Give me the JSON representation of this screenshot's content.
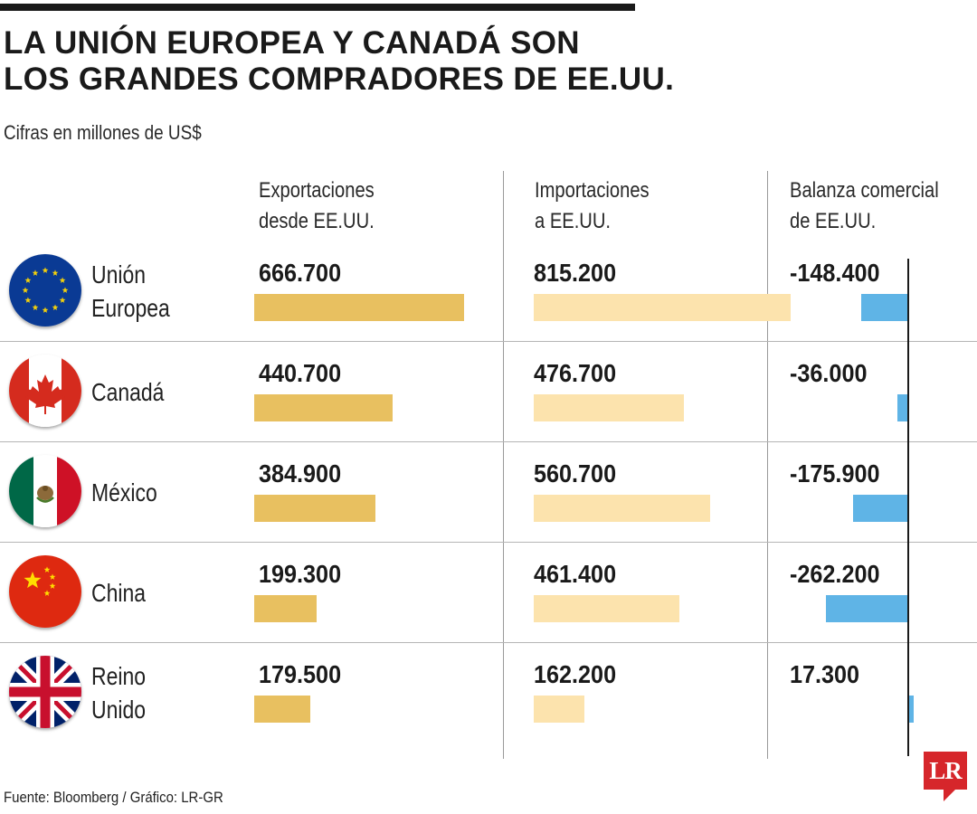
{
  "title_lines": [
    "LA UNIÓN EUROPEA Y CANADÁ SON",
    "LOS GRANDES COMPRADORES DE EE.UU."
  ],
  "subtitle": "Cifras en millones de US$",
  "columns": {
    "exports": [
      "Exportaciones",
      "desde EE.UU."
    ],
    "imports": [
      "Importaciones",
      "a EE.UU."
    ],
    "balance": [
      "Balanza comercial",
      "de EE.UU."
    ]
  },
  "source": "Fuente: Bloomberg / Gráfico: LR-GR",
  "logo": "LR",
  "colors": {
    "exports": "#e8c060",
    "imports": "#fce3ad",
    "balance": "#5fb4e6",
    "logo": "#d6262b"
  },
  "chart_data": {
    "type": "bar",
    "title": "LA UNIÓN EUROPEA Y CANADÁ SON LOS GRANDES COMPRADORES DE EE.UU.",
    "subtitle": "Cifras en millones de US$",
    "categories": [
      "Unión Europea",
      "Canadá",
      "México",
      "China",
      "Reino Unido"
    ],
    "flag_icons": [
      "eu-flag-icon",
      "canada-flag-icon",
      "mexico-flag-icon",
      "china-flag-icon",
      "uk-flag-icon"
    ],
    "series": [
      {
        "name": "Exportaciones desde EE.UU.",
        "values": [
          666700,
          440700,
          384900,
          199300,
          179500
        ],
        "labels": [
          "666.700",
          "440.700",
          "384.900",
          "199.300",
          "179.500"
        ]
      },
      {
        "name": "Importaciones a EE.UU.",
        "values": [
          815200,
          476700,
          560700,
          461400,
          162200
        ],
        "labels": [
          "815.200",
          "476.700",
          "560.700",
          "461.400",
          "162.200"
        ]
      },
      {
        "name": "Balanza comercial de EE.UU.",
        "values": [
          -148400,
          -36000,
          -175900,
          -262200,
          17300
        ],
        "labels": [
          "-148.400",
          "-36.000",
          "-175.900",
          "-262.200",
          "17.300"
        ]
      }
    ],
    "grid": false,
    "legend": "none"
  }
}
